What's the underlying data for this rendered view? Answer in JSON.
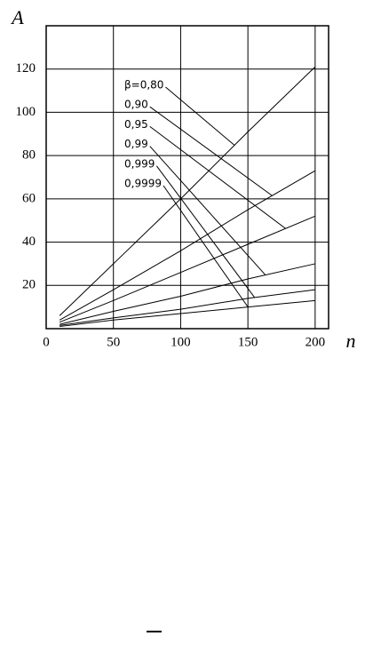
{
  "chart_data": {
    "type": "line",
    "y_label": "A",
    "x_label": "n",
    "x": [
      10,
      50,
      100,
      150,
      200
    ],
    "series": [
      {
        "name": "β=0,80",
        "color": "#000000",
        "values": [
          6,
          30,
          60,
          91,
          121
        ]
      },
      {
        "name": "0,90",
        "color": "#000000",
        "values": [
          4,
          18,
          36,
          55,
          73
        ]
      },
      {
        "name": "0,95",
        "color": "#000000",
        "values": [
          3,
          13,
          26,
          39,
          52
        ]
      },
      {
        "name": "0,99",
        "color": "#000000",
        "values": [
          2,
          8,
          15,
          23,
          30
        ]
      },
      {
        "name": "0,999",
        "color": "#000000",
        "values": [
          1.5,
          5,
          9,
          14,
          18
        ]
      },
      {
        "name": "0,9999",
        "color": "#000000",
        "values": [
          1,
          4,
          7,
          10,
          13
        ]
      }
    ],
    "xlim": [
      0,
      210
    ],
    "xticks": [
      0,
      50,
      100,
      150,
      200
    ],
    "ylim": [
      0,
      140
    ],
    "yticks": [
      20,
      40,
      60,
      80,
      100,
      120
    ],
    "grid": true
  }
}
